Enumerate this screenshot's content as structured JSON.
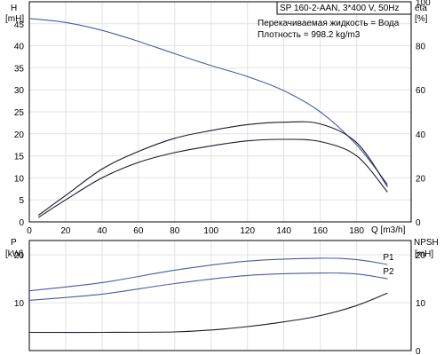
{
  "chart_data": [
    {
      "type": "line",
      "header": "SP 160-2-AAN, 3*400 V, 50Hz",
      "liquid_note": "Перекачиваемая жидкость = Вода",
      "density_note": "Плотность = 998.2 kg/m3",
      "xlabel": "Q [m3/h]",
      "ylabel_left": [
        "H",
        "[mH]"
      ],
      "ylabel_right": [
        "eta",
        "[%]"
      ],
      "xlim": [
        0,
        210
      ],
      "ylim_left": [
        0,
        50
      ],
      "ylim_right": [
        0,
        100
      ],
      "x_ticks": [
        0,
        20,
        40,
        60,
        80,
        100,
        120,
        140,
        160,
        180
      ],
      "y_ticks_left": [
        0,
        5,
        10,
        15,
        20,
        25,
        30,
        35,
        40,
        45
      ],
      "y_ticks_right": [
        0,
        20,
        40,
        60,
        80,
        100
      ],
      "grid": true,
      "series": [
        {
          "axis": "left",
          "color": "#4a5aa8",
          "x": [
            0,
            20,
            40,
            60,
            80,
            100,
            120,
            140,
            160,
            180,
            197
          ],
          "y": [
            46.2,
            45.3,
            43.5,
            41,
            38.2,
            35.5,
            33,
            29.8,
            25,
            17.5,
            8.5
          ]
        },
        {
          "axis": "right",
          "color": "#1a1a2a",
          "x": [
            5,
            20,
            40,
            60,
            80,
            100,
            120,
            140,
            160,
            180,
            197
          ],
          "y": [
            3,
            12,
            24,
            32,
            38,
            41.5,
            44.2,
            45.3,
            44.5,
            36,
            16
          ]
        },
        {
          "axis": "right",
          "color": "#1a1a2a",
          "x": [
            5,
            20,
            40,
            60,
            80,
            100,
            120,
            140,
            160,
            180,
            197
          ],
          "y": [
            2,
            10,
            20,
            27,
            31.5,
            34.5,
            36.8,
            37.5,
            36.5,
            30,
            13.5
          ]
        }
      ]
    },
    {
      "type": "line",
      "xlim": [
        0,
        210
      ],
      "ylabel_left": [
        "P",
        "[kW]"
      ],
      "ylabel_right": [
        "NPSH",
        "[mH]"
      ],
      "ylim_left": [
        0,
        23
      ],
      "ylim_right": [
        0,
        23
      ],
      "y_ticks_left": [
        10,
        20
      ],
      "y_ticks_right": [
        0,
        10,
        20
      ],
      "grid": true,
      "series": [
        {
          "name": "P1",
          "axis": "left",
          "color": "#4a5aa8",
          "x": [
            0,
            40,
            80,
            120,
            160,
            180,
            197
          ],
          "y": [
            12.5,
            14.2,
            16.8,
            18.7,
            19.3,
            19,
            18
          ]
        },
        {
          "name": "P2",
          "axis": "left",
          "color": "#4a5aa8",
          "x": [
            0,
            40,
            80,
            120,
            160,
            180,
            197
          ],
          "y": [
            10.5,
            11.8,
            14,
            15.7,
            16.2,
            16,
            15
          ]
        },
        {
          "axis": "right",
          "color": "#1a1a2a",
          "x": [
            0,
            40,
            80,
            100,
            120,
            140,
            160,
            180,
            197
          ],
          "y": [
            3.8,
            3.8,
            3.9,
            4.3,
            5,
            6,
            7.3,
            9.4,
            12
          ]
        }
      ]
    }
  ]
}
